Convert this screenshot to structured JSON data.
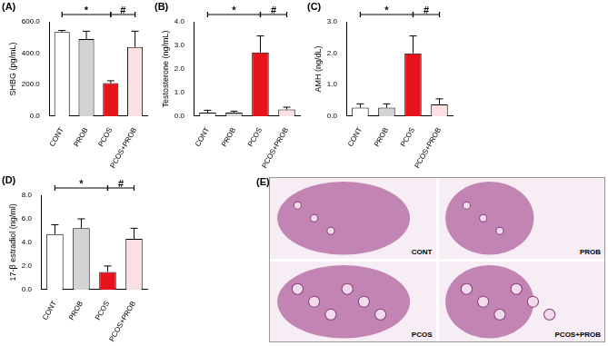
{
  "chart_data": [
    {
      "type": "bar",
      "panel": "(A)",
      "ylabel": "SHBG (pg/mL)",
      "categories": [
        "CONT",
        "PROB",
        "PCOS",
        "PCOS+PROB"
      ],
      "values": [
        535,
        490,
        210,
        440
      ],
      "errors": [
        10,
        50,
        15,
        100
      ],
      "colors": [
        "#ffffff",
        "#d3d3d3",
        "#e8141b",
        "#fbe1e1"
      ],
      "ylim": [
        0,
        600
      ],
      "yticks": [
        {
          "value": 0,
          "label": "0.0"
        },
        {
          "value": 200,
          "label": "200.0"
        },
        {
          "value": 400,
          "label": "400.0"
        },
        {
          "value": 600,
          "label": "600.0"
        }
      ],
      "annotations": [
        {
          "from": "CONT",
          "to": "PCOS",
          "label": "*"
        },
        {
          "from": "PCOS",
          "to": "PCOS+PROB",
          "label": "#"
        }
      ],
      "grid": false
    },
    {
      "type": "bar",
      "panel": "(B)",
      "ylabel": "Testosterone (ng/mL)",
      "categories": [
        "CONT",
        "PROB",
        "PCOS",
        "PCOS+PROB"
      ],
      "values": [
        0.15,
        0.15,
        2.7,
        0.28
      ],
      "errors": [
        0.1,
        0.06,
        0.7,
        0.1
      ],
      "colors": [
        "#ffffff",
        "#d3d3d3",
        "#e8141b",
        "#fbe1e1"
      ],
      "ylim": [
        0,
        4
      ],
      "yticks": [
        {
          "value": 0,
          "label": "0.0"
        },
        {
          "value": 1,
          "label": "1.0"
        },
        {
          "value": 2,
          "label": "2.0"
        },
        {
          "value": 3,
          "label": "3.0"
        },
        {
          "value": 4,
          "label": "4.0"
        }
      ],
      "annotations": [
        {
          "from": "CONT",
          "to": "PCOS",
          "label": "*"
        },
        {
          "from": "PCOS",
          "to": "PCOS+PROB",
          "label": "#"
        }
      ],
      "grid": false
    },
    {
      "type": "bar",
      "panel": "(C)",
      "ylabel": "AMH (ng/dL)",
      "categories": [
        "CONT",
        "PROB",
        "PCOS",
        "PCOS+PROB"
      ],
      "values": [
        0.27,
        0.27,
        2.0,
        0.37
      ],
      "errors": [
        0.12,
        0.12,
        0.55,
        0.18
      ],
      "colors": [
        "#ffffff",
        "#d3d3d3",
        "#e8141b",
        "#fbe1e1"
      ],
      "ylim": [
        0,
        3
      ],
      "yticks": [
        {
          "value": 0,
          "label": "0.0"
        },
        {
          "value": 1,
          "label": "1.0"
        },
        {
          "value": 2,
          "label": "2.0"
        },
        {
          "value": 3,
          "label": "3.0"
        }
      ],
      "annotations": [
        {
          "from": "CONT",
          "to": "PCOS",
          "label": "*"
        },
        {
          "from": "PCOS",
          "to": "PCOS+PROB",
          "label": "#"
        }
      ],
      "grid": false
    },
    {
      "type": "bar",
      "panel": "(D)",
      "ylabel": "17-β estradiol (ng/ml)",
      "categories": [
        "CONT",
        "PROB",
        "PCOS",
        "PCOS+PROB"
      ],
      "values": [
        4.7,
        5.2,
        1.5,
        4.3
      ],
      "errors": [
        0.8,
        0.8,
        0.5,
        0.9
      ],
      "colors": [
        "#ffffff",
        "#d3d3d3",
        "#e8141b",
        "#fbe1e1"
      ],
      "ylim": [
        0,
        8
      ],
      "yticks": [
        {
          "value": 0,
          "label": "0.0"
        },
        {
          "value": 2,
          "label": "2.0"
        },
        {
          "value": 4,
          "label": "4.0"
        },
        {
          "value": 6,
          "label": "6.0"
        },
        {
          "value": 8,
          "label": "8.0"
        }
      ],
      "annotations": [
        {
          "from": "CONT",
          "to": "PCOS",
          "label": "*"
        },
        {
          "from": "PCOS",
          "to": "PCOS+PROB",
          "label": "#"
        }
      ],
      "grid": false
    }
  ],
  "image_panel": {
    "panel": "(E)",
    "images": [
      "CONT",
      "PROB",
      "PCOS",
      "PCOS+PROB"
    ]
  }
}
